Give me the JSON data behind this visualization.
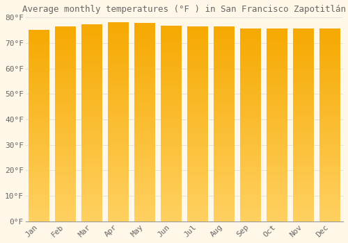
{
  "title": "Average monthly temperatures (°F ) in San Francisco Zapotitlán",
  "months": [
    "Jan",
    "Feb",
    "Mar",
    "Apr",
    "May",
    "Jun",
    "Jul",
    "Aug",
    "Sep",
    "Oct",
    "Nov",
    "Dec"
  ],
  "temperatures": [
    75.2,
    76.5,
    77.3,
    78.1,
    77.8,
    76.8,
    76.5,
    76.5,
    75.8,
    75.7,
    75.6,
    75.6
  ],
  "bar_color_dark": "#F5A800",
  "bar_color_light": "#FFD060",
  "background_color": "#FFF8E8",
  "grid_color": "#DDDDDD",
  "text_color": "#666666",
  "ylim": [
    0,
    80
  ],
  "ytick_step": 10,
  "title_fontsize": 9,
  "tick_fontsize": 8,
  "font_family": "monospace"
}
